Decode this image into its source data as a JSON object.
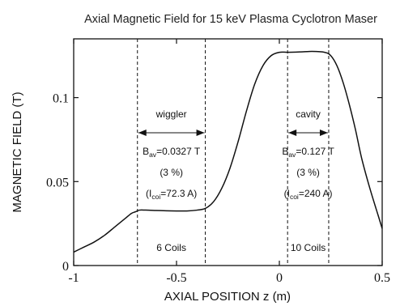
{
  "chart_data": {
    "type": "line",
    "title": "Axial Magnetic Field for 15 keV Plasma Cyclotron Maser",
    "xlabel": "AXIAL POSITION  z (m)",
    "ylabel": "MAGNETIC FIELD (T)",
    "xlim": [
      -1,
      0.5
    ],
    "ylim": [
      0,
      0.135
    ],
    "x_ticks": [
      {
        "value": -1,
        "label": "-1"
      },
      {
        "value": -0.5,
        "label": "-0.5"
      },
      {
        "value": 0,
        "label": "0"
      },
      {
        "value": 0.5,
        "label": "0.5"
      }
    ],
    "y_ticks": [
      {
        "value": 0,
        "label": "0"
      },
      {
        "value": 0.05,
        "label": "0.05"
      },
      {
        "value": 0.1,
        "label": "0.1"
      }
    ],
    "grid": false,
    "series": [
      {
        "color": "#111111",
        "x": [
          -1.0,
          -0.95,
          -0.9,
          -0.85,
          -0.8,
          -0.75,
          -0.72,
          -0.7,
          -0.68,
          -0.65,
          -0.6,
          -0.55,
          -0.5,
          -0.45,
          -0.4,
          -0.36,
          -0.32,
          -0.28,
          -0.24,
          -0.2,
          -0.16,
          -0.12,
          -0.08,
          -0.04,
          0.0,
          0.04,
          0.1,
          0.16,
          0.22,
          0.25,
          0.28,
          0.31,
          0.34,
          0.37,
          0.4,
          0.44,
          0.48,
          0.5
        ],
        "y": [
          0.008,
          0.011,
          0.014,
          0.018,
          0.023,
          0.028,
          0.031,
          0.032,
          0.033,
          0.033,
          0.0328,
          0.0326,
          0.0325,
          0.0325,
          0.033,
          0.034,
          0.038,
          0.046,
          0.058,
          0.074,
          0.092,
          0.108,
          0.119,
          0.125,
          0.127,
          0.127,
          0.1272,
          0.1275,
          0.127,
          0.125,
          0.119,
          0.109,
          0.096,
          0.081,
          0.064,
          0.046,
          0.03,
          0.022
        ]
      }
    ],
    "vertical_markers": [
      -0.69,
      -0.36,
      0.04,
      0.24
    ],
    "regions": [
      {
        "label": "wiggler",
        "from": -0.69,
        "to": -0.36,
        "b_prefix": "B",
        "b_sub": "av",
        "b_value": "=0.0327 T",
        "percent": "(3 %)",
        "i_prefix": "(I",
        "i_sub": "coi",
        "i_value": "=72.3 A)",
        "coils": "6 Coils"
      },
      {
        "label": "cavity",
        "from": 0.04,
        "to": 0.24,
        "b_prefix": "B",
        "b_sub": "av",
        "b_value": "=0.127 T",
        "percent": "(3 %)",
        "i_prefix": "(I",
        "i_sub": "coi",
        "i_value": "=240 A)",
        "coils": "10 Coils"
      }
    ]
  }
}
